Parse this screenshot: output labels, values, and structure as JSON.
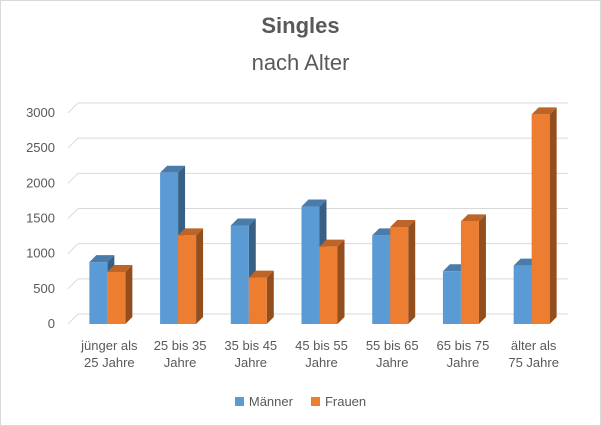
{
  "chart_data": {
    "type": "bar",
    "title": "Singles",
    "subtitle": "nach Alter",
    "categories": [
      [
        "jünger als",
        "25 Jahre"
      ],
      [
        "25 bis 35",
        "Jahre"
      ],
      [
        "35 bis 45",
        "Jahre"
      ],
      [
        "45 bis 55",
        "Jahre"
      ],
      [
        "55 bis 65",
        "Jahre"
      ],
      [
        "65 bis 75",
        "Jahre"
      ],
      [
        "älter als",
        "75 Jahre"
      ]
    ],
    "series": [
      {
        "name": "Männer",
        "color": "#5b9bd5",
        "values": [
          880,
          2150,
          1400,
          1670,
          1260,
          750,
          830
        ]
      },
      {
        "name": "Frauen",
        "color": "#ed7d31",
        "values": [
          740,
          1260,
          660,
          1100,
          1380,
          1460,
          2980
        ]
      }
    ],
    "y_ticks": [
      "0",
      "500",
      "1000",
      "1500",
      "2000",
      "2500",
      "3000"
    ],
    "ylim": [
      0,
      3000
    ],
    "grid": true,
    "style": "3d-columns",
    "legend_position": "bottom"
  }
}
